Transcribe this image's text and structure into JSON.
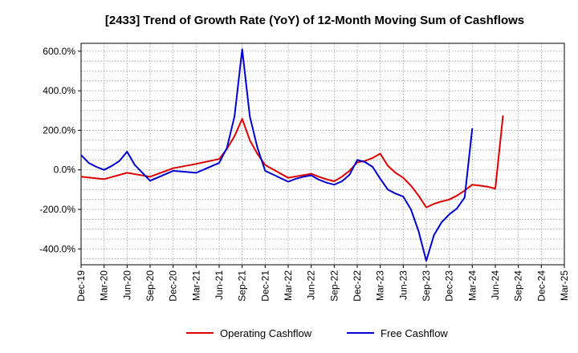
{
  "chart_data": {
    "type": "line",
    "title": "[2433]  Trend of Growth Rate (YoY) of 12-Month Moving Sum of Cashflows",
    "xlabel": "",
    "ylabel": "",
    "ylim": [
      -480,
      640
    ],
    "yticks": [
      600,
      400,
      200,
      0,
      -200,
      -400
    ],
    "ytick_labels": [
      "600.0%",
      "400.0%",
      "200.0%",
      "0.0%",
      "-200.0%",
      "-400.0%"
    ],
    "xlim": [
      "Dec-19",
      "Mar-25"
    ],
    "xtick_labels": [
      "Dec-19",
      "Mar-20",
      "Jun-20",
      "Sep-20",
      "Dec-20",
      "Mar-21",
      "Jun-21",
      "Sep-21",
      "Dec-21",
      "Mar-22",
      "Jun-22",
      "Sep-22",
      "Dec-22",
      "Mar-23",
      "Jun-23",
      "Sep-23",
      "Dec-23",
      "Mar-24",
      "Jun-24",
      "Sep-24",
      "Dec-24",
      "Mar-25"
    ],
    "grid": true,
    "legend_position": "bottom",
    "series": [
      {
        "name": "Operating Cashflow",
        "color": "#dd0000",
        "x": [
          "Dec-19",
          "Mar-20",
          "Jun-20",
          "Sep-20",
          "Dec-20",
          "Mar-21",
          "Jun-21",
          "Jul-21",
          "Aug-21",
          "Sep-21",
          "Oct-21",
          "Nov-21",
          "Dec-21",
          "Mar-22",
          "Jun-22",
          "Jul-22",
          "Aug-22",
          "Sep-22",
          "Oct-22",
          "Nov-22",
          "Dec-22",
          "Jan-23",
          "Feb-23",
          "Mar-23",
          "Apr-23",
          "May-23",
          "Jun-23",
          "Jul-23",
          "Aug-23",
          "Sep-23",
          "Oct-23",
          "Nov-23",
          "Dec-23",
          "Jan-24",
          "Feb-24",
          "Mar-24",
          "Apr-24",
          "May-24",
          "Jun-24",
          "Jul-24"
        ],
        "y": [
          -35,
          -47,
          -15,
          -35,
          8,
          30,
          55,
          105,
          170,
          258,
          150,
          80,
          25,
          -40,
          -20,
          -35,
          -48,
          -58,
          -35,
          -5,
          38,
          45,
          60,
          82,
          20,
          -15,
          -40,
          -80,
          -130,
          -190,
          -172,
          -160,
          -150,
          -130,
          -105,
          -75,
          -80,
          -85,
          -95,
          275
        ]
      },
      {
        "name": "Free Cashflow",
        "color": "#0000cc",
        "x": [
          "Dec-19",
          "Jan-20",
          "Feb-20",
          "Mar-20",
          "Apr-20",
          "May-20",
          "Jun-20",
          "Jul-20",
          "Sep-20",
          "Dec-20",
          "Mar-21",
          "Jun-21",
          "Jul-21",
          "Aug-21",
          "Sep-21",
          "Oct-21",
          "Nov-21",
          "Dec-21",
          "Mar-22",
          "Apr-22",
          "May-22",
          "Jun-22",
          "Jul-22",
          "Aug-22",
          "Sep-22",
          "Oct-22",
          "Nov-22",
          "Dec-22",
          "Jan-23",
          "Feb-23",
          "Mar-23",
          "Apr-23",
          "May-23",
          "Jun-23",
          "Jul-23",
          "Aug-23",
          "Sep-23",
          "Oct-23",
          "Nov-23",
          "Dec-23",
          "Jan-24",
          "Feb-24",
          "Mar-24"
        ],
        "y": [
          75,
          35,
          15,
          0,
          20,
          45,
          92,
          25,
          -55,
          -5,
          -15,
          35,
          110,
          270,
          610,
          270,
          110,
          -5,
          -60,
          -45,
          -35,
          -28,
          -50,
          -65,
          -75,
          -58,
          -25,
          50,
          40,
          15,
          -45,
          -100,
          -120,
          -135,
          -200,
          -310,
          -460,
          -330,
          -265,
          -225,
          -195,
          -140,
          210
        ]
      }
    ]
  }
}
